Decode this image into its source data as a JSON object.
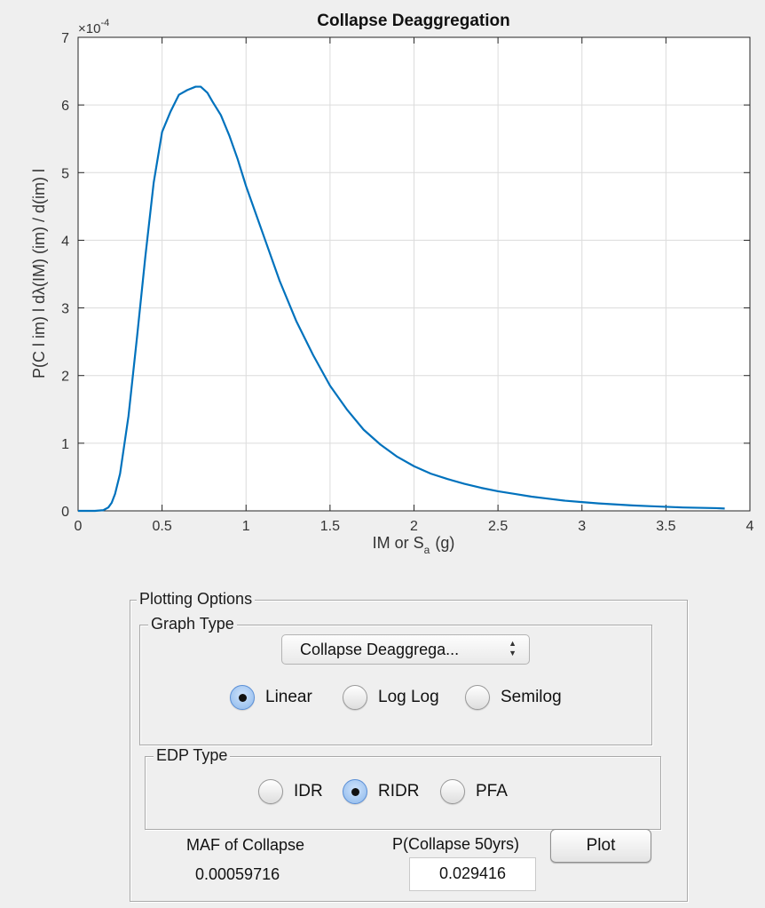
{
  "chart_data": {
    "type": "line",
    "title": "Collapse Deaggregation",
    "xlabel_main": "IM or S",
    "xlabel_sub": "a",
    "xlabel_tail": "(g)",
    "ylabel": "P(C l im) l dλ(IM) (im) / d(im) l",
    "y_exponent_label": "×10",
    "y_exponent_power": "-4",
    "xlim": [
      0,
      4
    ],
    "ylim": [
      0,
      7
    ],
    "x_ticks": [
      0,
      0.5,
      1,
      1.5,
      2,
      2.5,
      3,
      3.5,
      4
    ],
    "x_tick_labels": [
      "0",
      "0.5",
      "1",
      "1.5",
      "2",
      "2.5",
      "3",
      "3.5",
      "4"
    ],
    "y_ticks": [
      0,
      1,
      2,
      3,
      4,
      5,
      6,
      7
    ],
    "y_tick_labels": [
      "0",
      "1",
      "2",
      "3",
      "4",
      "5",
      "6",
      "7"
    ],
    "grid": true,
    "line_color": "#0072bd",
    "series": [
      {
        "x": [
          0,
          0.1,
          0.15,
          0.18,
          0.2,
          0.22,
          0.25,
          0.3,
          0.35,
          0.4,
          0.45,
          0.5,
          0.55,
          0.6,
          0.65,
          0.7,
          0.73,
          0.77,
          0.8,
          0.85,
          0.9,
          0.95,
          1.0,
          1.1,
          1.2,
          1.3,
          1.4,
          1.5,
          1.6,
          1.7,
          1.8,
          1.9,
          2.0,
          2.1,
          2.2,
          2.3,
          2.4,
          2.5,
          2.6,
          2.7,
          2.8,
          2.9,
          3.0,
          3.1,
          3.2,
          3.3,
          3.4,
          3.5,
          3.6,
          3.7,
          3.8,
          3.85
        ],
        "y": [
          0,
          0.0,
          0.01,
          0.05,
          0.12,
          0.25,
          0.55,
          1.4,
          2.55,
          3.75,
          4.85,
          5.6,
          5.9,
          6.15,
          6.22,
          6.27,
          6.27,
          6.18,
          6.05,
          5.85,
          5.55,
          5.2,
          4.8,
          4.1,
          3.4,
          2.8,
          2.3,
          1.85,
          1.5,
          1.2,
          0.98,
          0.8,
          0.66,
          0.55,
          0.47,
          0.4,
          0.34,
          0.29,
          0.25,
          0.21,
          0.18,
          0.15,
          0.13,
          0.11,
          0.095,
          0.08,
          0.07,
          0.06,
          0.05,
          0.045,
          0.04,
          0.035
        ]
      }
    ]
  },
  "panel": {
    "title": "Plotting Options",
    "graph_type": {
      "title": "Graph Type",
      "dropdown_value": "Collapse Deaggrega...",
      "options": [
        {
          "label": "Linear",
          "selected": true
        },
        {
          "label": "Log Log",
          "selected": false
        },
        {
          "label": "Semilog",
          "selected": false
        }
      ]
    },
    "edp_type": {
      "title": "EDP Type",
      "options": [
        {
          "label": "IDR",
          "selected": false
        },
        {
          "label": "RIDR",
          "selected": true
        },
        {
          "label": "PFA",
          "selected": false
        }
      ]
    },
    "maf_label": "MAF of Collapse",
    "maf_value": "0.00059716",
    "pcollapse_label": "P(Collapse 50yrs)",
    "pcollapse_value": "0.029416",
    "plot_button": "Plot"
  }
}
